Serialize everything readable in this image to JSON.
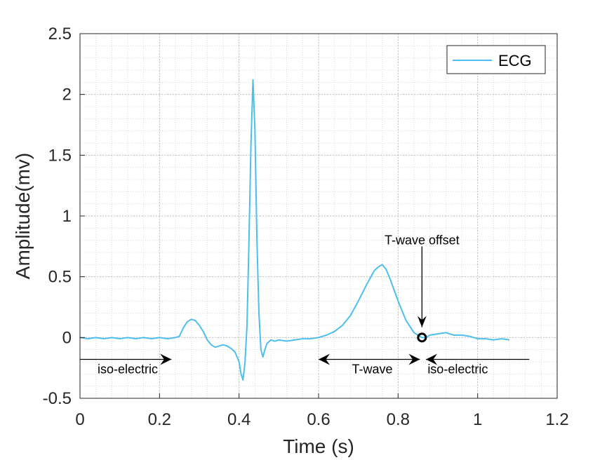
{
  "chart_data": {
    "type": "line",
    "title": "",
    "xlabel": "Time (s)",
    "ylabel": "Amplitude(mv)",
    "xlim": [
      0,
      1.2
    ],
    "ylim": [
      -0.5,
      2.5
    ],
    "xticks": [
      0,
      0.2,
      0.4,
      0.6,
      0.8,
      1,
      1.2
    ],
    "xtick_labels": [
      "0",
      "0.2",
      "0.4",
      "0.6",
      "0.8",
      "1",
      "1.2"
    ],
    "yticks": [
      -0.5,
      0,
      0.5,
      1,
      1.5,
      2,
      2.5
    ],
    "ytick_labels": [
      "-0.5",
      "0",
      "0.5",
      "1",
      "1.5",
      "2",
      "2.5"
    ],
    "grid": "on (major and minor, dotted)",
    "legend": {
      "placement": "top-right",
      "entries": [
        "ECG"
      ]
    },
    "colors": {
      "series": "#4DBEEE",
      "axes": "#262626",
      "grid": "#d4d4d4",
      "annotation": "#000000"
    },
    "series": [
      {
        "name": "ECG",
        "x": [
          0,
          0.02,
          0.04,
          0.06,
          0.08,
          0.1,
          0.12,
          0.14,
          0.16,
          0.18,
          0.2,
          0.22,
          0.24,
          0.25,
          0.26,
          0.27,
          0.28,
          0.29,
          0.3,
          0.31,
          0.32,
          0.33,
          0.34,
          0.35,
          0.36,
          0.37,
          0.38,
          0.39,
          0.4,
          0.405,
          0.41,
          0.415,
          0.42,
          0.425,
          0.43,
          0.435,
          0.44,
          0.445,
          0.45,
          0.455,
          0.46,
          0.465,
          0.47,
          0.48,
          0.49,
          0.5,
          0.52,
          0.54,
          0.56,
          0.58,
          0.6,
          0.62,
          0.64,
          0.66,
          0.68,
          0.7,
          0.72,
          0.74,
          0.75,
          0.76,
          0.77,
          0.78,
          0.8,
          0.82,
          0.84,
          0.85,
          0.86,
          0.87,
          0.88,
          0.9,
          0.92,
          0.94,
          0.96,
          0.98,
          1.0,
          1.02,
          1.04,
          1.06,
          1.08
        ],
        "y": [
          0.0,
          -0.01,
          0.0,
          -0.01,
          0.0,
          -0.01,
          0.0,
          -0.01,
          0.0,
          -0.01,
          0.0,
          -0.01,
          0.0,
          0.01,
          0.08,
          0.13,
          0.15,
          0.14,
          0.1,
          0.05,
          -0.02,
          -0.06,
          -0.08,
          -0.07,
          -0.06,
          -0.07,
          -0.09,
          -0.12,
          -0.2,
          -0.3,
          -0.35,
          -0.2,
          0.1,
          0.8,
          1.6,
          2.12,
          1.7,
          0.8,
          0.2,
          -0.1,
          -0.16,
          -0.1,
          -0.05,
          -0.02,
          -0.03,
          -0.02,
          -0.03,
          -0.02,
          -0.01,
          -0.01,
          0.0,
          0.02,
          0.05,
          0.1,
          0.18,
          0.3,
          0.43,
          0.55,
          0.58,
          0.6,
          0.56,
          0.48,
          0.3,
          0.14,
          0.04,
          0.02,
          0.0,
          0.0,
          0.02,
          0.03,
          0.04,
          0.02,
          0.02,
          0.01,
          -0.01,
          -0.01,
          -0.02,
          -0.01,
          -0.02
        ]
      }
    ],
    "markers": [
      {
        "label": "T-wave offset",
        "x": 0.86,
        "y": 0.0,
        "shape": "circle"
      }
    ],
    "annotations": [
      {
        "text": "iso-electric",
        "x": 0.12,
        "y": -0.26,
        "arrow": {
          "from": 0.0,
          "to": 0.23,
          "y": -0.18,
          "head": "right"
        }
      },
      {
        "text": "T-wave",
        "x": 0.735,
        "y": -0.26,
        "arrow": {
          "from": 0.6,
          "to": 0.855,
          "y": -0.18,
          "head": "both"
        }
      },
      {
        "text": "iso-electric",
        "x": 0.95,
        "y": -0.26,
        "arrow": {
          "from": 1.13,
          "to": 0.87,
          "y": -0.18,
          "head": "right"
        }
      },
      {
        "text": "T-wave offset",
        "x": 0.86,
        "y": 0.8,
        "arrow": {
          "from_y": 0.75,
          "to_y": 0.05,
          "x": 0.86,
          "head": "down"
        }
      }
    ]
  }
}
